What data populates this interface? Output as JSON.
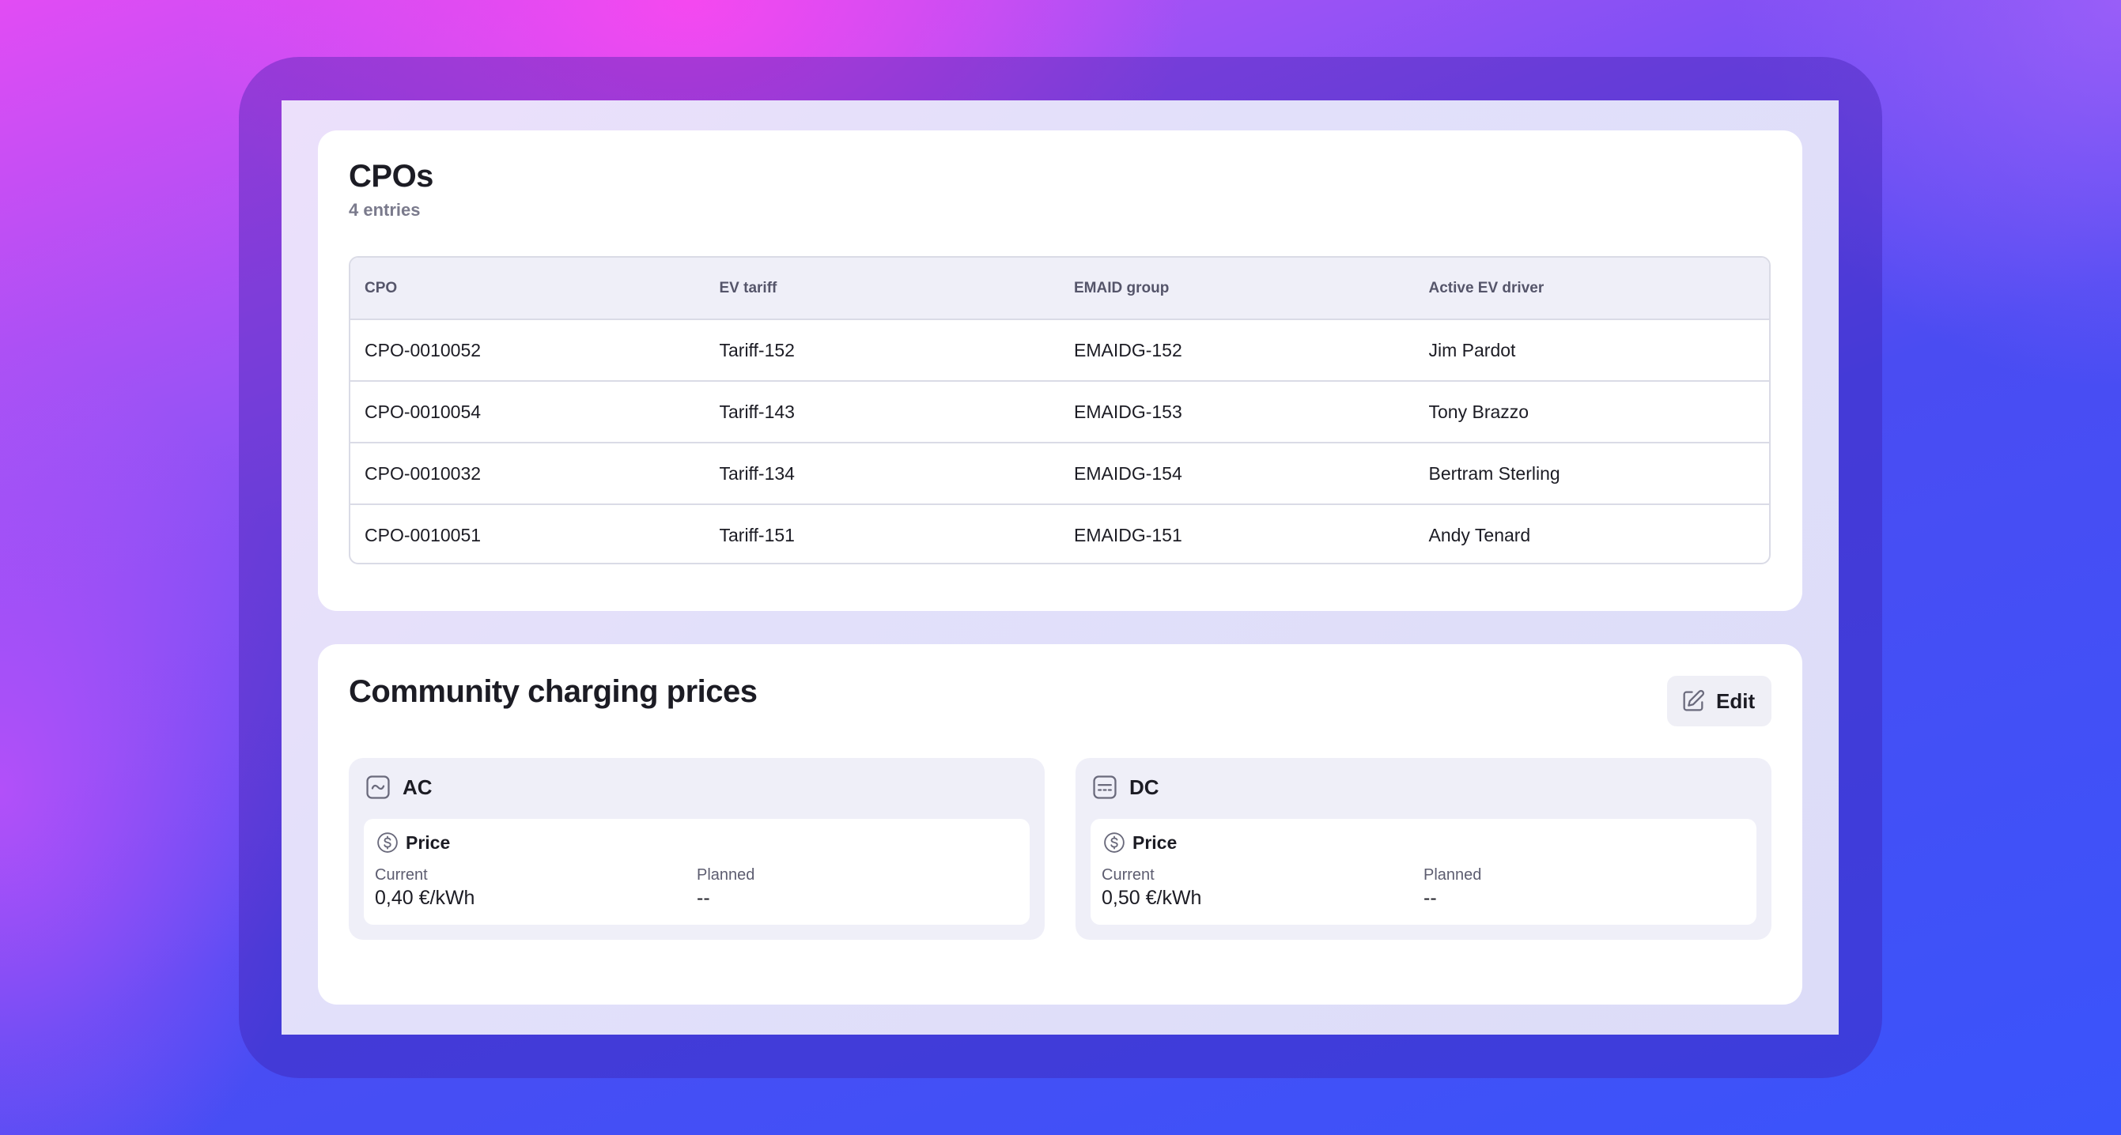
{
  "cpos": {
    "title": "CPOs",
    "entries_count": "4 entries",
    "columns": [
      "CPO",
      "EV tariff",
      "EMAID group",
      "Active EV driver"
    ],
    "rows": [
      [
        "CPO-0010052",
        "Tariff-152",
        "EMAIDG-152",
        "Jim Pardot"
      ],
      [
        "CPO-0010054",
        "Tariff-143",
        "EMAIDG-153",
        "Tony Brazzo"
      ],
      [
        "CPO-0010032",
        "Tariff-134",
        "EMAIDG-154",
        "Bertram Sterling"
      ],
      [
        "CPO-0010051",
        "Tariff-151",
        "EMAIDG-151",
        "Andy Tenard"
      ]
    ]
  },
  "prices": {
    "title": "Community charging prices",
    "edit_label": "Edit",
    "panels": [
      {
        "type": "AC",
        "icon": "ac-wave-icon",
        "price_label": "Price",
        "current_label": "Current",
        "current_value": "0,40 €/kWh",
        "planned_label": "Planned",
        "planned_value": "--"
      },
      {
        "type": "DC",
        "icon": "dc-lines-icon",
        "price_label": "Price",
        "current_label": "Current",
        "current_value": "0,50 €/kWh",
        "planned_label": "Planned",
        "planned_value": "--"
      }
    ]
  },
  "colors": {
    "accent_icon": "#6a6a7c",
    "panel_bg": "#efeff8",
    "table_header_bg": "#efeff8"
  }
}
